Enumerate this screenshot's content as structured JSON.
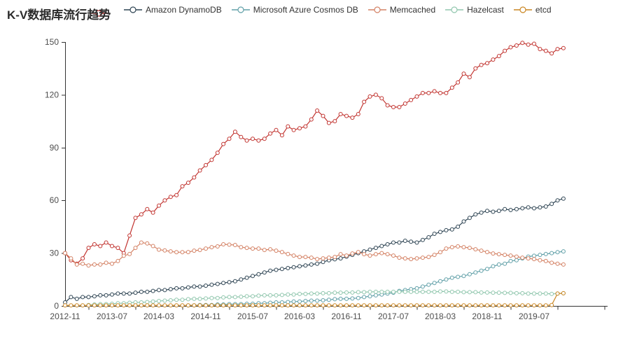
{
  "chart_data": {
    "type": "line",
    "title": "K-V数据库流行趋势",
    "legend": {
      "position": "top",
      "items": [
        "Amazon DynamoDB",
        "Microsoft Azure Cosmos DB",
        "Memcached",
        "Hazelcast",
        "etcd"
      ],
      "hidden_item_color": "#c23531"
    },
    "x_axis": {
      "tick_labels": [
        "2012-11",
        "2013-07",
        "2014-03",
        "2014-11",
        "2015-07",
        "2016-03",
        "2016-11",
        "2017-07",
        "2018-03",
        "2018-11",
        "2019-07"
      ],
      "label_interval_months": 8
    },
    "y_axis": {
      "ticks": [
        0,
        30,
        60,
        90,
        120,
        150
      ],
      "min": 0,
      "max": 150
    },
    "grid": false,
    "marker": "hollow-circle",
    "categories": [
      "2012-11",
      "2012-12",
      "2013-01",
      "2013-02",
      "2013-03",
      "2013-04",
      "2013-05",
      "2013-06",
      "2013-07",
      "2013-08",
      "2013-09",
      "2013-10",
      "2013-11",
      "2013-12",
      "2014-01",
      "2014-02",
      "2014-03",
      "2014-04",
      "2014-05",
      "2014-06",
      "2014-07",
      "2014-08",
      "2014-09",
      "2014-10",
      "2014-11",
      "2014-12",
      "2015-01",
      "2015-02",
      "2015-03",
      "2015-04",
      "2015-05",
      "2015-06",
      "2015-07",
      "2015-08",
      "2015-09",
      "2015-10",
      "2015-11",
      "2015-12",
      "2016-01",
      "2016-02",
      "2016-03",
      "2016-04",
      "2016-05",
      "2016-06",
      "2016-07",
      "2016-08",
      "2016-09",
      "2016-10",
      "2016-11",
      "2016-12",
      "2017-01",
      "2017-02",
      "2017-03",
      "2017-04",
      "2017-05",
      "2017-06",
      "2017-07",
      "2017-08",
      "2017-09",
      "2017-10",
      "2017-11",
      "2017-12",
      "2018-01",
      "2018-02",
      "2018-03",
      "2018-04",
      "2018-05",
      "2018-06",
      "2018-07",
      "2018-08",
      "2018-09",
      "2018-10",
      "2018-11",
      "2018-12",
      "2019-01",
      "2019-02",
      "2019-03",
      "2019-04",
      "2019-05",
      "2019-06",
      "2019-07",
      "2019-08",
      "2019-09",
      "2019-10",
      "2019-11",
      "2019-12"
    ],
    "series": [
      {
        "name": "",
        "legend_label_hidden_behind_title": true,
        "color": "#c23531",
        "values": [
          30,
          26,
          24,
          27,
          33,
          35,
          34,
          36,
          34,
          33,
          30,
          40,
          50,
          52,
          55,
          53,
          57,
          60,
          62,
          63,
          68,
          70,
          73,
          77,
          80,
          83,
          87,
          92,
          95,
          99,
          96,
          94,
          95,
          94,
          95,
          98,
          100,
          97,
          102,
          100,
          101,
          102,
          106,
          111,
          108,
          104,
          105,
          109,
          108,
          107,
          109,
          116,
          119,
          120,
          118,
          114,
          113,
          113,
          115,
          117,
          119,
          121,
          121,
          122,
          121,
          121,
          124,
          127,
          132,
          130,
          135,
          137,
          138,
          140,
          142,
          145,
          147,
          148,
          149.5,
          148.5,
          149,
          146,
          145,
          143.5,
          146,
          146.5
        ]
      },
      {
        "name": "Amazon DynamoDB",
        "color": "#2f4554",
        "values": [
          2,
          5,
          4,
          5,
          5,
          5.5,
          6,
          6,
          6.5,
          7,
          7,
          7,
          7.5,
          8,
          8,
          8.5,
          9,
          9,
          9.5,
          10,
          10,
          10.5,
          11,
          11,
          11.5,
          12,
          12.5,
          13,
          13.5,
          14,
          15,
          16,
          17,
          18,
          19,
          20,
          20.5,
          21,
          21.5,
          22,
          22.5,
          23,
          23.5,
          24,
          25,
          26,
          26.5,
          27,
          28,
          29,
          30,
          31,
          32,
          33,
          34,
          35,
          36,
          36,
          37,
          36.5,
          36,
          37.5,
          39,
          41,
          42,
          43,
          43.5,
          45,
          48,
          50,
          52,
          53,
          54,
          53.5,
          54,
          55,
          54.5,
          55,
          55.5,
          56,
          55.5,
          56,
          56.5,
          58,
          60,
          61
        ]
      },
      {
        "name": "Microsoft Azure Cosmos DB",
        "color": "#61a0a8",
        "values": [
          null,
          null,
          null,
          null,
          null,
          null,
          null,
          null,
          null,
          null,
          null,
          null,
          null,
          null,
          null,
          null,
          null,
          null,
          null,
          null,
          null,
          0.3,
          0.3,
          0.5,
          0.5,
          0.5,
          0.8,
          0.8,
          1,
          1,
          1,
          1.2,
          1.2,
          1.5,
          1.5,
          1.8,
          2,
          2,
          2.2,
          2.5,
          2.5,
          2.8,
          3,
          3,
          3.2,
          3.5,
          3.8,
          4,
          4,
          4.2,
          4.5,
          5,
          5.5,
          6,
          6.5,
          7,
          7.5,
          8.5,
          9,
          9.5,
          10,
          11,
          12,
          13,
          14,
          15,
          16,
          16.5,
          17,
          18,
          19,
          20,
          21,
          22.5,
          23.5,
          24,
          25.5,
          26,
          27,
          28,
          28.5,
          29,
          29.5,
          30,
          30.5,
          31
        ]
      },
      {
        "name": "Memcached",
        "color": "#d48265",
        "values": [
          30,
          27,
          23.5,
          24,
          23,
          23.5,
          23.5,
          24.5,
          24,
          25.5,
          28.5,
          29.5,
          33,
          36,
          35.5,
          34,
          32,
          31.5,
          31,
          30.5,
          30.5,
          30.6,
          31.4,
          31.8,
          32.6,
          33.4,
          33.8,
          35,
          34.8,
          34.6,
          33.4,
          33,
          32.6,
          32.6,
          31.8,
          32.2,
          31.4,
          30.6,
          29.5,
          28.6,
          27.8,
          27.8,
          27.4,
          26.6,
          27,
          27.4,
          27.8,
          29.4,
          28.6,
          29.8,
          30.6,
          29.4,
          28.6,
          29.4,
          30,
          29.4,
          28.6,
          27.4,
          27,
          26.6,
          27,
          27.4,
          27.8,
          29,
          30.5,
          32.6,
          33.4,
          33.8,
          33.4,
          33,
          32.2,
          31.4,
          30.6,
          29.8,
          29.4,
          29,
          28.6,
          28,
          27.4,
          27,
          26.6,
          26,
          25.5,
          24.5,
          24,
          23.5
        ]
      },
      {
        "name": "Hazelcast",
        "color": "#91c7ae",
        "values": [
          null,
          null,
          null,
          null,
          0.5,
          0.8,
          1,
          1,
          1.2,
          1.5,
          1.5,
          1.8,
          2,
          2,
          2.2,
          2.5,
          2.8,
          3,
          3.2,
          3.5,
          3.5,
          3.8,
          4,
          4,
          4.2,
          4.5,
          4.5,
          4.8,
          5,
          5,
          5.2,
          5.5,
          5.5,
          5.8,
          6,
          6,
          6,
          6.2,
          6.5,
          6.5,
          6.8,
          6.8,
          7,
          7,
          7.2,
          7.2,
          7.5,
          7.5,
          7.6,
          7.6,
          7.8,
          7.8,
          8,
          8,
          8,
          8,
          8,
          8,
          8,
          8,
          8,
          8,
          8,
          8,
          8.2,
          8.2,
          8,
          8,
          7.8,
          7.8,
          7.8,
          7.6,
          7.6,
          7.5,
          7.5,
          7.4,
          7.4,
          7.2,
          7.2,
          7,
          7,
          7,
          7,
          6.8,
          7,
          7.2
        ]
      },
      {
        "name": "etcd",
        "color": "#ca8622",
        "values": [
          0.3,
          0.3,
          0.3,
          0.3,
          0.3,
          0.3,
          0.3,
          0.3,
          0.3,
          0.3,
          0.3,
          0.3,
          0.3,
          0.3,
          0.3,
          0.3,
          0.3,
          0.3,
          0.3,
          0.3,
          0.3,
          0.3,
          0.3,
          0.3,
          0.3,
          0.3,
          0.3,
          0.3,
          0.3,
          0.3,
          0.3,
          0.3,
          0.3,
          0.3,
          0.3,
          0.3,
          0.3,
          0.3,
          0.3,
          0.3,
          0.3,
          0.3,
          0.3,
          0.3,
          0.3,
          0.3,
          0.3,
          0.3,
          0.3,
          0.3,
          0.3,
          0.3,
          0.3,
          0.3,
          0.3,
          0.3,
          0.3,
          0.3,
          0.3,
          0.3,
          0.3,
          0.3,
          0.3,
          0.3,
          0.3,
          0.3,
          0.3,
          0.3,
          0.3,
          0.3,
          0.3,
          0.3,
          0.3,
          0.3,
          0.3,
          0.3,
          0.3,
          0.3,
          0.3,
          0.3,
          0.3,
          0.3,
          0.3,
          0.5,
          7,
          7.2
        ]
      }
    ]
  }
}
